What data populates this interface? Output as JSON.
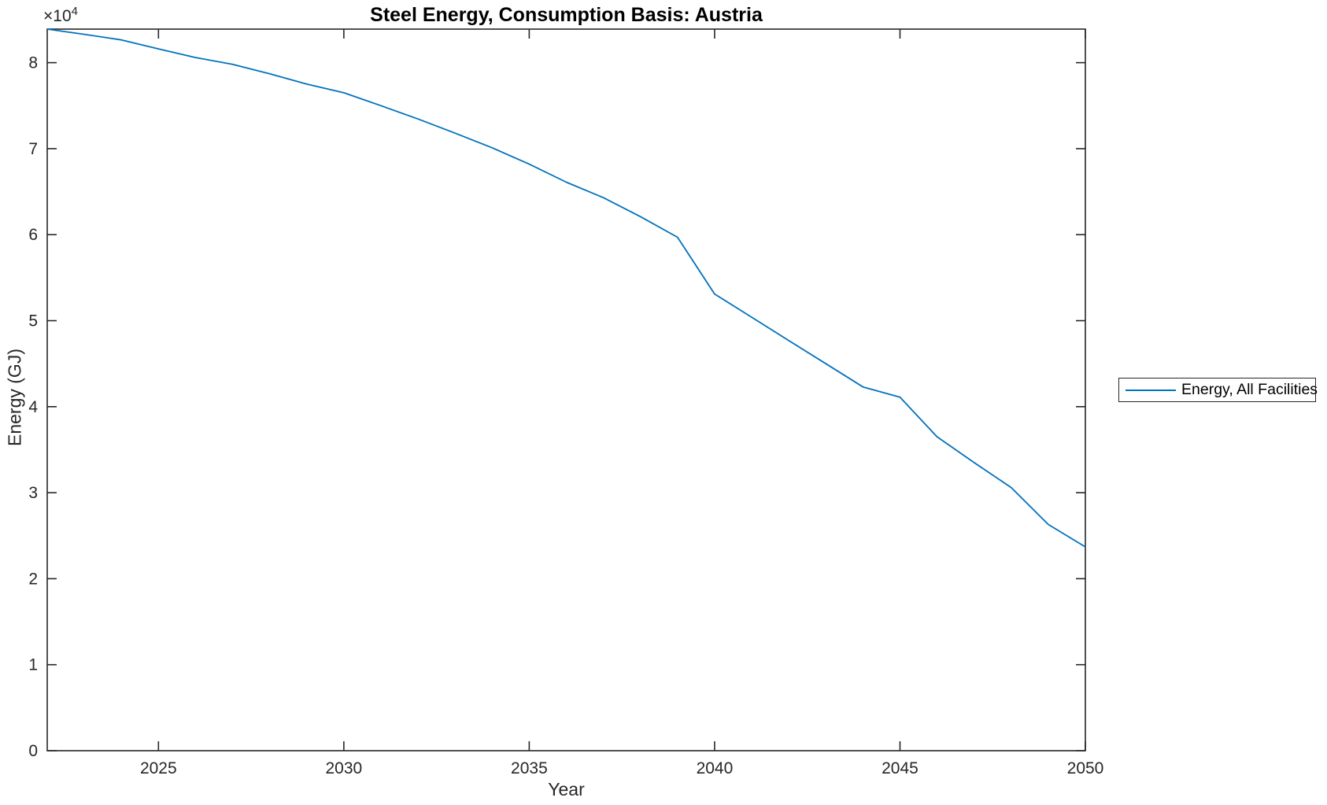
{
  "figure": {
    "title": "Steel Energy, Consumption Basis: Austria",
    "y_axis_multiplier_base": "×10",
    "y_axis_multiplier_exponent": "4",
    "xlabel": "Year",
    "ylabel": "Energy (GJ)",
    "legend": {
      "entries": [
        {
          "label": "Energy, All Facilities",
          "color": "#0072BD"
        }
      ]
    }
  },
  "chart_data": {
    "type": "line",
    "title": "Steel Energy, Consumption Basis: Austria",
    "xlabel": "Year",
    "ylabel": "Energy (GJ)",
    "y_axis_multiplier": "×10⁴",
    "x": [
      2022,
      2023,
      2024,
      2025,
      2026,
      2027,
      2028,
      2029,
      2030,
      2031,
      2032,
      2033,
      2034,
      2035,
      2036,
      2037,
      2038,
      2039,
      2040,
      2041,
      2042,
      2043,
      2044,
      2045,
      2046,
      2047,
      2048,
      2049,
      2050
    ],
    "series": [
      {
        "name": "Energy, All Facilities",
        "color": "#0072BD",
        "values": [
          83900,
          83300,
          82650,
          81600,
          80600,
          79800,
          78700,
          77500,
          76500,
          75000,
          73450,
          71800,
          70100,
          68200,
          66100,
          64300,
          62100,
          59700,
          53100,
          50400,
          47700,
          45000,
          42300,
          41100,
          36500,
          33500,
          30600,
          26300,
          23700
        ]
      }
    ],
    "xlim": [
      2022,
      2050
    ],
    "ylim": [
      0,
      83900
    ],
    "xticks": [
      2025,
      2030,
      2035,
      2040,
      2045,
      2050
    ],
    "yticks": [
      0,
      10000,
      20000,
      30000,
      40000,
      50000,
      60000,
      70000,
      80000
    ],
    "ytick_labels": [
      "0",
      "1",
      "2",
      "3",
      "4",
      "5",
      "6",
      "7",
      "8"
    ],
    "grid": false,
    "legend_position": "right-outside",
    "axis_color": "#262626",
    "background_color": "#ffffff"
  }
}
